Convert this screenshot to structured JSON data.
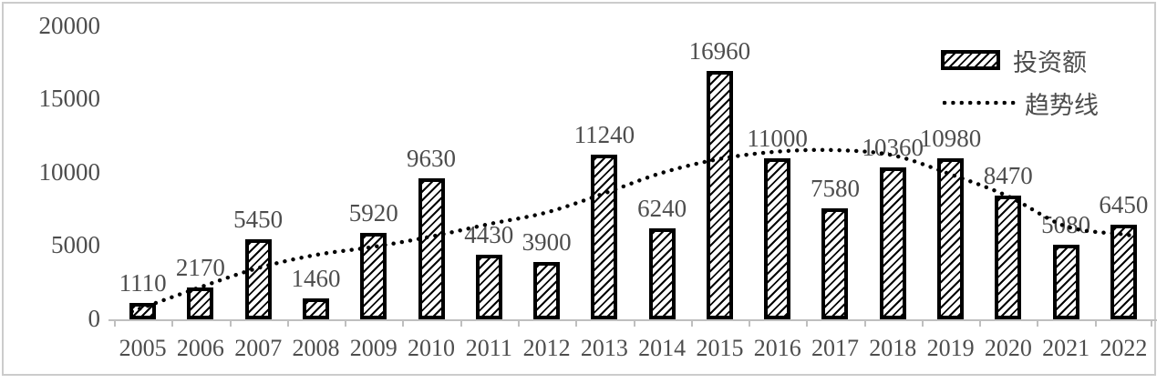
{
  "chart_data": {
    "type": "bar",
    "title": "",
    "xlabel": "",
    "ylabel": "",
    "categories": [
      "2005",
      "2006",
      "2007",
      "2008",
      "2009",
      "2010",
      "2011",
      "2012",
      "2013",
      "2014",
      "2015",
      "2016",
      "2017",
      "2018",
      "2019",
      "2020",
      "2021",
      "2022"
    ],
    "series": [
      {
        "name": "投资额",
        "type": "bar",
        "values": [
          1110,
          2170,
          5450,
          1460,
          5920,
          9630,
          4430,
          3900,
          11240,
          6240,
          16960,
          11000,
          7580,
          10360,
          10980,
          8470,
          5080,
          6450
        ],
        "data_labels_visible": true
      },
      {
        "name": "趋势线",
        "type": "dotted-line",
        "estimated_from_pixels": true,
        "values": [
          800,
          2200,
          3500,
          4400,
          4950,
          5650,
          6500,
          7300,
          8600,
          10000,
          10950,
          11450,
          11550,
          11200,
          9900,
          8400,
          6350,
          5800
        ]
      }
    ],
    "ylim": [
      0,
      20000
    ],
    "ytick_labels": [
      "20000",
      "15000",
      "10000",
      "5000",
      "0"
    ],
    "grid": false,
    "legend_position": "top-right",
    "colors": {
      "bar_fill": "#ffffff",
      "bar_hatch": "#000000",
      "bar_border": "#000000",
      "trend_line": "#000000",
      "text": "#4d4d4d",
      "axis_line": "#bfbfbf",
      "frame_border": "#cccccc",
      "background": "#ffffff"
    }
  }
}
